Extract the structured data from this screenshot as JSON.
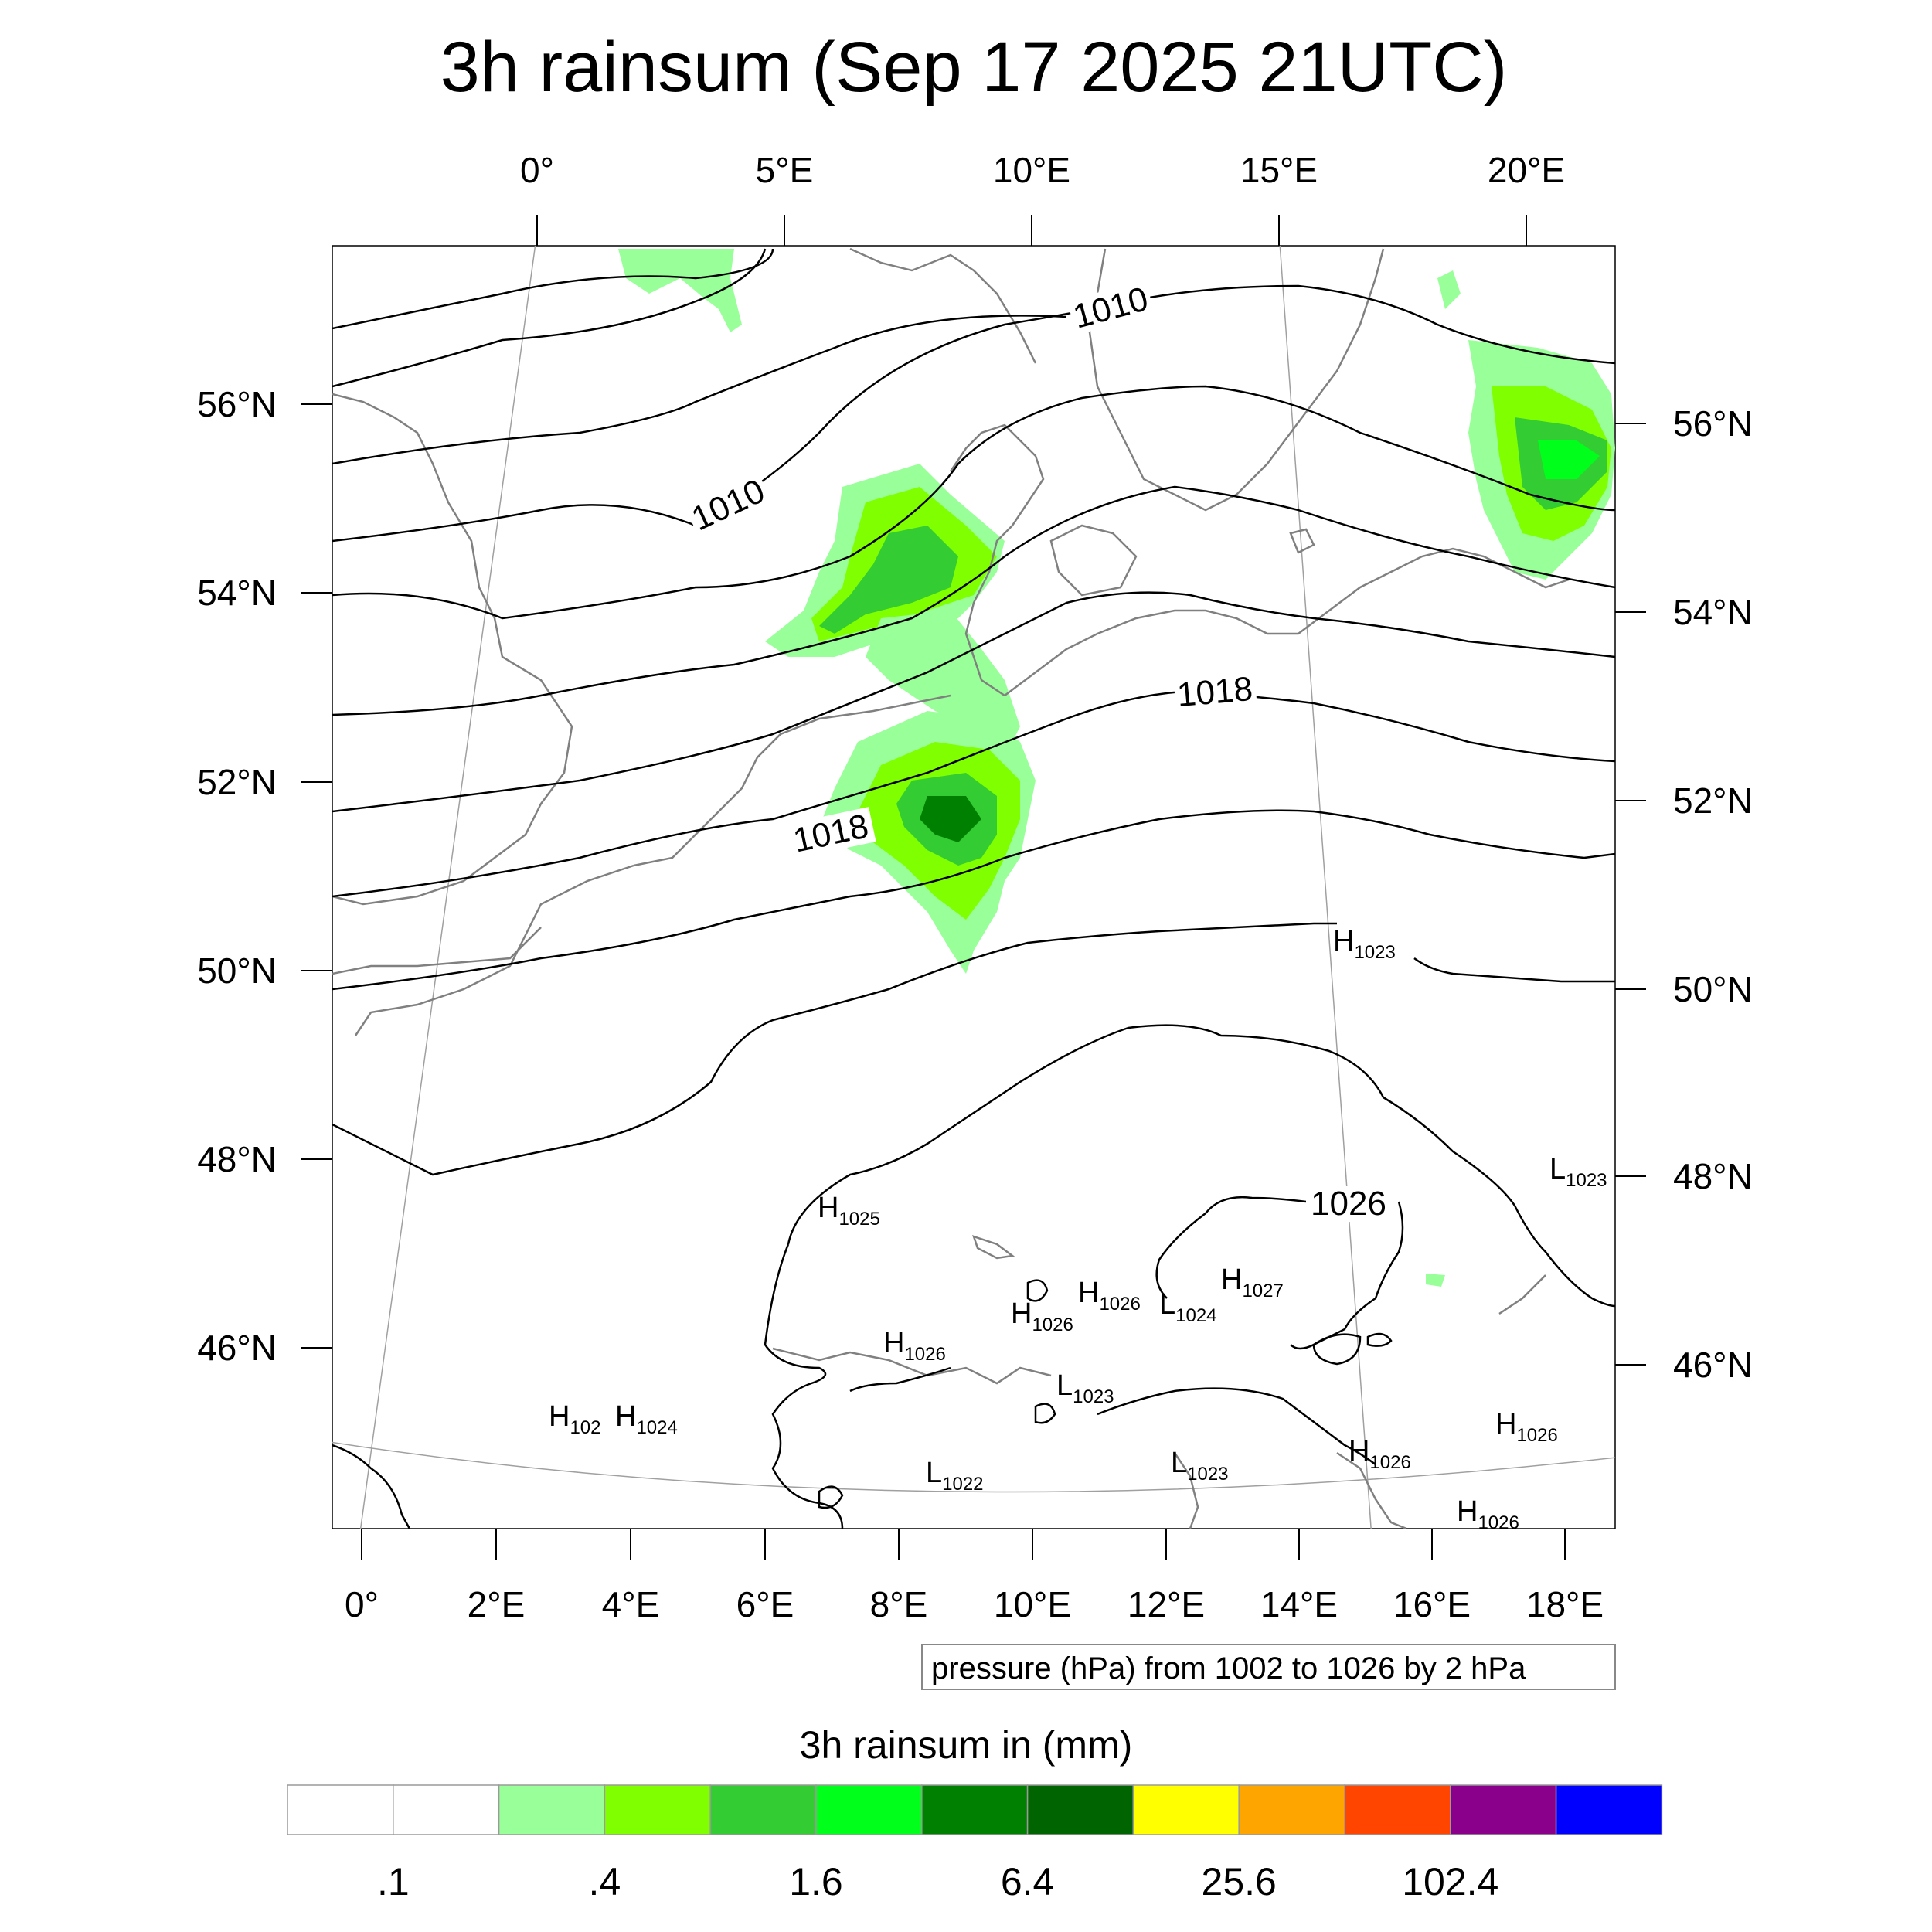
{
  "title": "3h rainsum (Sep 17 2025 21UTC)",
  "top_lon_ticks": [
    "0°",
    "5°E",
    "10°E",
    "15°E",
    "20°E"
  ],
  "bottom_lon_ticks": [
    "0°",
    "2°E",
    "4°E",
    "6°E",
    "8°E",
    "10°E",
    "12°E",
    "14°E",
    "16°E",
    "18°E"
  ],
  "left_lat_ticks": [
    "56°N",
    "54°N",
    "52°N",
    "50°N",
    "48°N",
    "46°N"
  ],
  "right_lat_ticks": [
    "56°N",
    "54°N",
    "52°N",
    "50°N",
    "48°N",
    "46°N"
  ],
  "contour_labels": [
    "1010",
    "1010",
    "1018",
    "1018",
    "1026"
  ],
  "pressure_centers": [
    {
      "letter": "H",
      "value": "1023"
    },
    {
      "letter": "L",
      "value": "1023"
    },
    {
      "letter": "H",
      "value": "1025"
    },
    {
      "letter": "H",
      "value": "1026"
    },
    {
      "letter": "L",
      "value": "1024"
    },
    {
      "letter": "H",
      "value": "1027"
    },
    {
      "letter": "H",
      "value": "1026"
    },
    {
      "letter": "H",
      "value": "1026"
    },
    {
      "letter": "L",
      "value": "1023"
    },
    {
      "letter": "H",
      "value": "102"
    },
    {
      "letter": "H",
      "value": "1024"
    },
    {
      "letter": "L",
      "value": "1022"
    },
    {
      "letter": "L",
      "value": "1023"
    },
    {
      "letter": "H",
      "value": "1026"
    },
    {
      "letter": "H",
      "value": "1026"
    },
    {
      "letter": "H",
      "value": "1026"
    }
  ],
  "contour_info": "pressure (hPa) from 1002 to 1026 by 2 hPa",
  "colorbar": {
    "title": "3h rainsum in (mm)",
    "colors": [
      "#ffffff",
      "#ffffff",
      "#99ff99",
      "#80ff00",
      "#33cc33",
      "#00ff1a",
      "#008000",
      "#006400",
      "#ffff00",
      "#ffa500",
      "#ff4500",
      "#8b008b",
      "#0000ff"
    ],
    "labels": [
      ".1",
      ".4",
      "1.6",
      "6.4",
      "25.6",
      "102.4"
    ]
  },
  "colors": {
    "contour": "#000000",
    "coastline": "#808080",
    "graticule": "#a0a0a0"
  }
}
